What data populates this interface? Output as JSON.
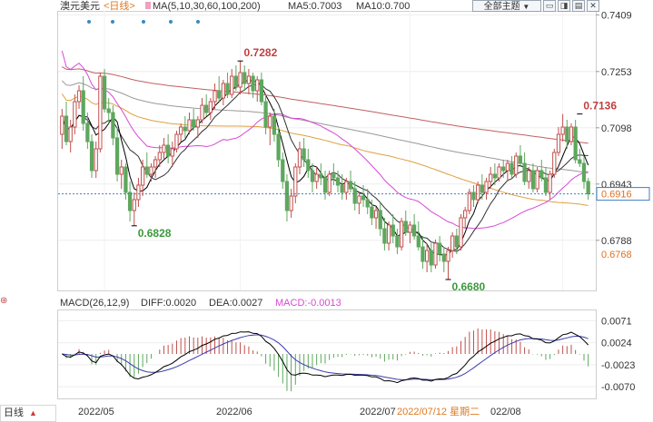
{
  "header": {
    "symbol": "澳元美元",
    "period": "<日线>",
    "ma_label": "MA(5,10,30,60,100,200)",
    "ma5": "MA5:0.7003",
    "ma10": "MA10:0.700",
    "theme_button": "全部主题",
    "theme_arrow": "▼"
  },
  "macd_header": {
    "title": "MACD(26,12,9)",
    "diff": "DIFF:0.0020",
    "dea": "DEA:0.0027",
    "macd": "MACD:-0.0013"
  },
  "footer": {
    "period_tab": "日线",
    "period_arrow": "▲",
    "dates": [
      "2022/05",
      "2022/06",
      "2022/07",
      "2022/07/12 星期二",
      "022/08"
    ]
  },
  "colors": {
    "up": "#c0504d",
    "down": "#5ea75e",
    "ma5": "#000000",
    "ma10": "#333333",
    "ma30": "#d64ad6",
    "ma60": "#e0a040",
    "ma100": "#999999",
    "ma200": "#c06060",
    "diff": "#000000",
    "dea": "#3b3bb0",
    "current": "#3f7fbf"
  },
  "chart_data": [
    {
      "type": "candlestick",
      "title": "澳元美元",
      "yaxis_ticks": [
        "0.7409",
        "0.7253",
        "0.7098",
        "0.6943",
        "0.6788"
      ],
      "ylim": [
        0.665,
        0.742
      ],
      "current_price": "0.6916",
      "current_value": 0.6916,
      "extra_label": "0.6768",
      "annotations": [
        {
          "text": "0.7282",
          "index": 42,
          "value": 0.7282,
          "kind": "high"
        },
        {
          "text": "0.6828",
          "index": 17,
          "value": 0.6828,
          "kind": "low"
        },
        {
          "text": "0.6680",
          "index": 91,
          "value": 0.668,
          "kind": "low"
        },
        {
          "text": "0.7136",
          "index": 122,
          "value": 0.7136,
          "kind": "high"
        }
      ],
      "series_note": "OHLC daily",
      "ohlc": [
        [
          0.708,
          0.715,
          0.704,
          0.713
        ],
        [
          0.713,
          0.717,
          0.705,
          0.706
        ],
        [
          0.706,
          0.712,
          0.703,
          0.71
        ],
        [
          0.71,
          0.719,
          0.708,
          0.717
        ],
        [
          0.717,
          0.7215,
          0.715,
          0.72
        ],
        [
          0.72,
          0.724,
          0.709,
          0.711
        ],
        [
          0.711,
          0.714,
          0.704,
          0.706
        ],
        [
          0.706,
          0.708,
          0.696,
          0.698
        ],
        [
          0.698,
          0.706,
          0.696,
          0.704
        ],
        [
          0.704,
          0.725,
          0.703,
          0.724
        ],
        [
          0.724,
          0.726,
          0.714,
          0.715
        ],
        [
          0.715,
          0.718,
          0.711,
          0.714
        ],
        [
          0.714,
          0.716,
          0.705,
          0.707
        ],
        [
          0.707,
          0.71,
          0.695,
          0.697
        ],
        [
          0.697,
          0.701,
          0.693,
          0.699
        ],
        [
          0.699,
          0.7,
          0.69,
          0.692
        ],
        [
          0.692,
          0.695,
          0.684,
          0.687
        ],
        [
          0.687,
          0.692,
          0.6828,
          0.69
        ],
        [
          0.69,
          0.696,
          0.688,
          0.694
        ],
        [
          0.694,
          0.701,
          0.691,
          0.699
        ],
        [
          0.699,
          0.703,
          0.696,
          0.697
        ],
        [
          0.697,
          0.7,
          0.695,
          0.699
        ],
        [
          0.699,
          0.702,
          0.696,
          0.701
        ],
        [
          0.701,
          0.705,
          0.699,
          0.703
        ],
        [
          0.703,
          0.707,
          0.701,
          0.705
        ],
        [
          0.705,
          0.708,
          0.7,
          0.702
        ],
        [
          0.702,
          0.706,
          0.699,
          0.704
        ],
        [
          0.704,
          0.709,
          0.703,
          0.708
        ],
        [
          0.708,
          0.711,
          0.706,
          0.71
        ],
        [
          0.71,
          0.713,
          0.707,
          0.709
        ],
        [
          0.709,
          0.714,
          0.708,
          0.712
        ],
        [
          0.712,
          0.715,
          0.709,
          0.71
        ],
        [
          0.71,
          0.713,
          0.707,
          0.712
        ],
        [
          0.712,
          0.718,
          0.711,
          0.716
        ],
        [
          0.716,
          0.719,
          0.713,
          0.714
        ],
        [
          0.714,
          0.718,
          0.712,
          0.717
        ],
        [
          0.717,
          0.722,
          0.715,
          0.72
        ],
        [
          0.72,
          0.724,
          0.717,
          0.718
        ],
        [
          0.718,
          0.723,
          0.716,
          0.722
        ],
        [
          0.722,
          0.725,
          0.718,
          0.719
        ],
        [
          0.719,
          0.726,
          0.718,
          0.724
        ],
        [
          0.724,
          0.727,
          0.72,
          0.721
        ],
        [
          0.721,
          0.7282,
          0.719,
          0.725
        ],
        [
          0.725,
          0.727,
          0.72,
          0.722
        ],
        [
          0.722,
          0.726,
          0.719,
          0.724
        ],
        [
          0.724,
          0.725,
          0.718,
          0.72
        ],
        [
          0.72,
          0.724,
          0.717,
          0.723
        ],
        [
          0.723,
          0.725,
          0.716,
          0.717
        ],
        [
          0.717,
          0.719,
          0.708,
          0.71
        ],
        [
          0.71,
          0.714,
          0.705,
          0.713
        ],
        [
          0.713,
          0.715,
          0.706,
          0.708
        ],
        [
          0.708,
          0.71,
          0.699,
          0.701
        ],
        [
          0.701,
          0.703,
          0.693,
          0.695
        ],
        [
          0.695,
          0.697,
          0.684,
          0.687
        ],
        [
          0.687,
          0.693,
          0.685,
          0.691
        ],
        [
          0.691,
          0.7,
          0.689,
          0.699
        ],
        [
          0.699,
          0.706,
          0.697,
          0.704
        ],
        [
          0.704,
          0.707,
          0.699,
          0.701
        ],
        [
          0.701,
          0.704,
          0.696,
          0.698
        ],
        [
          0.698,
          0.7,
          0.692,
          0.695
        ],
        [
          0.695,
          0.699,
          0.693,
          0.697
        ],
        [
          0.697,
          0.7,
          0.694,
          0.696
        ],
        [
          0.696,
          0.698,
          0.69,
          0.692
        ],
        [
          0.692,
          0.698,
          0.691,
          0.697
        ],
        [
          0.697,
          0.7,
          0.694,
          0.696
        ],
        [
          0.696,
          0.698,
          0.692,
          0.694
        ],
        [
          0.694,
          0.697,
          0.69,
          0.692
        ],
        [
          0.692,
          0.696,
          0.69,
          0.695
        ],
        [
          0.695,
          0.698,
          0.692,
          0.693
        ],
        [
          0.693,
          0.695,
          0.687,
          0.689
        ],
        [
          0.689,
          0.692,
          0.686,
          0.691
        ],
        [
          0.691,
          0.694,
          0.688,
          0.69
        ],
        [
          0.69,
          0.693,
          0.686,
          0.688
        ],
        [
          0.688,
          0.69,
          0.683,
          0.685
        ],
        [
          0.685,
          0.688,
          0.682,
          0.687
        ],
        [
          0.687,
          0.689,
          0.68,
          0.682
        ],
        [
          0.682,
          0.685,
          0.676,
          0.678
        ],
        [
          0.678,
          0.684,
          0.676,
          0.683
        ],
        [
          0.683,
          0.686,
          0.678,
          0.68
        ],
        [
          0.68,
          0.682,
          0.675,
          0.677
        ],
        [
          0.677,
          0.685,
          0.676,
          0.684
        ],
        [
          0.684,
          0.687,
          0.68,
          0.681
        ],
        [
          0.681,
          0.684,
          0.678,
          0.683
        ],
        [
          0.683,
          0.686,
          0.679,
          0.68
        ],
        [
          0.68,
          0.684,
          0.676,
          0.677
        ],
        [
          0.677,
          0.68,
          0.671,
          0.673
        ],
        [
          0.673,
          0.678,
          0.67,
          0.676
        ],
        [
          0.676,
          0.678,
          0.67,
          0.672
        ],
        [
          0.672,
          0.679,
          0.671,
          0.678
        ],
        [
          0.678,
          0.68,
          0.673,
          0.675
        ],
        [
          0.675,
          0.677,
          0.67,
          0.673
        ],
        [
          0.673,
          0.677,
          0.668,
          0.676
        ],
        [
          0.676,
          0.681,
          0.674,
          0.68
        ],
        [
          0.68,
          0.682,
          0.675,
          0.677
        ],
        [
          0.677,
          0.686,
          0.676,
          0.685
        ],
        [
          0.685,
          0.688,
          0.682,
          0.687
        ],
        [
          0.687,
          0.693,
          0.686,
          0.692
        ],
        [
          0.692,
          0.694,
          0.688,
          0.69
        ],
        [
          0.69,
          0.695,
          0.689,
          0.694
        ],
        [
          0.694,
          0.697,
          0.69,
          0.692
        ],
        [
          0.692,
          0.696,
          0.69,
          0.695
        ],
        [
          0.695,
          0.699,
          0.693,
          0.697
        ],
        [
          0.697,
          0.7,
          0.694,
          0.696
        ],
        [
          0.696,
          0.7,
          0.695,
          0.699
        ],
        [
          0.699,
          0.701,
          0.696,
          0.698
        ],
        [
          0.698,
          0.701,
          0.695,
          0.7
        ],
        [
          0.7,
          0.702,
          0.696,
          0.697
        ],
        [
          0.697,
          0.703,
          0.696,
          0.702
        ],
        [
          0.702,
          0.705,
          0.699,
          0.7
        ],
        [
          0.7,
          0.703,
          0.694,
          0.695
        ],
        [
          0.695,
          0.699,
          0.693,
          0.698
        ],
        [
          0.698,
          0.7,
          0.692,
          0.693
        ],
        [
          0.693,
          0.699,
          0.692,
          0.698
        ],
        [
          0.698,
          0.701,
          0.695,
          0.696
        ],
        [
          0.696,
          0.699,
          0.691,
          0.692
        ],
        [
          0.692,
          0.698,
          0.69,
          0.697
        ],
        [
          0.697,
          0.704,
          0.696,
          0.703
        ],
        [
          0.703,
          0.71,
          0.702,
          0.708
        ],
        [
          0.708,
          0.7136,
          0.706,
          0.71
        ],
        [
          0.71,
          0.712,
          0.704,
          0.706
        ],
        [
          0.706,
          0.711,
          0.705,
          0.71
        ],
        [
          0.71,
          0.712,
          0.7,
          0.701
        ],
        [
          0.701,
          0.704,
          0.699,
          0.7
        ],
        [
          0.7,
          0.702,
          0.693,
          0.695
        ],
        [
          0.695,
          0.696,
          0.69,
          0.6916
        ]
      ]
    },
    {
      "type": "macd",
      "title": "MACD(26,12,9)",
      "yaxis_ticks": [
        "0.0071",
        "0.0024",
        "-0.0023",
        "-0.0070"
      ],
      "ylim": [
        -0.0095,
        0.0095
      ],
      "series": [
        {
          "name": "DIFF"
        },
        {
          "name": "DEA"
        },
        {
          "name": "MACD"
        }
      ]
    }
  ]
}
